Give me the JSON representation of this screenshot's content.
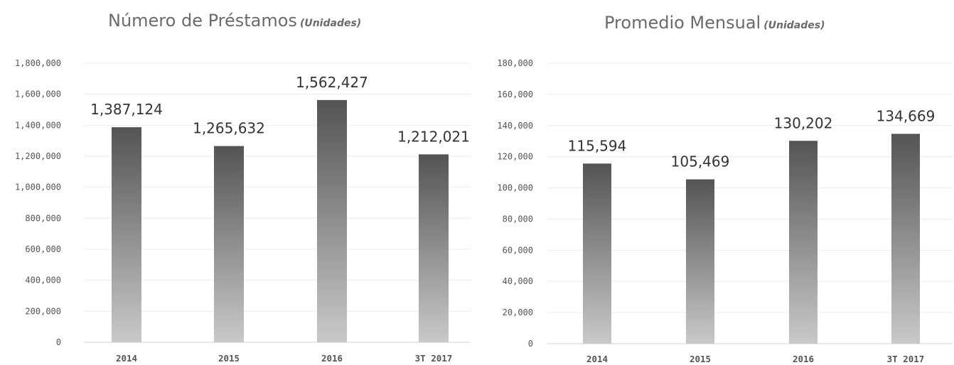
{
  "chart_data": [
    {
      "type": "bar",
      "title": "Número de Préstamos",
      "title_unit": "(Unidades)",
      "categories": [
        "2014",
        "2015",
        "2016",
        "3T 2017"
      ],
      "values": [
        1387124,
        1265632,
        1562427,
        1212021
      ],
      "value_labels": [
        "1,387,124",
        "1,265,632",
        "1,562,427",
        "1,212,021"
      ],
      "ylim": [
        0,
        1800000
      ],
      "yticks": [
        0,
        200000,
        400000,
        600000,
        800000,
        1000000,
        1200000,
        1400000,
        1600000,
        1800000
      ],
      "ytick_labels": [
        "0",
        "200,000",
        "400,000",
        "600,000",
        "800,000",
        "1,000,000",
        "1,200,000",
        "1,400,000",
        "1,600,000",
        "1,800,000"
      ],
      "grid": true,
      "bar_color_top": "#545454",
      "bar_color_bottom": "#c9c9c9"
    },
    {
      "type": "bar",
      "title": "Promedio Mensual",
      "title_unit": "(Unidades)",
      "categories": [
        "2014",
        "2015",
        "2016",
        "3T 2017"
      ],
      "values": [
        115594,
        105469,
        130202,
        134669
      ],
      "value_labels": [
        "115,594",
        "105,469",
        "130,202",
        "134,669"
      ],
      "ylim": [
        0,
        180000
      ],
      "yticks": [
        0,
        20000,
        40000,
        60000,
        80000,
        100000,
        120000,
        140000,
        160000,
        180000
      ],
      "ytick_labels": [
        "0",
        "20,000",
        "40,000",
        "60,000",
        "80,000",
        "100,000",
        "120,000",
        "140,000",
        "160,000",
        "180,000"
      ],
      "grid": true,
      "bar_color_top": "#545454",
      "bar_color_bottom": "#c9c9c9"
    }
  ]
}
